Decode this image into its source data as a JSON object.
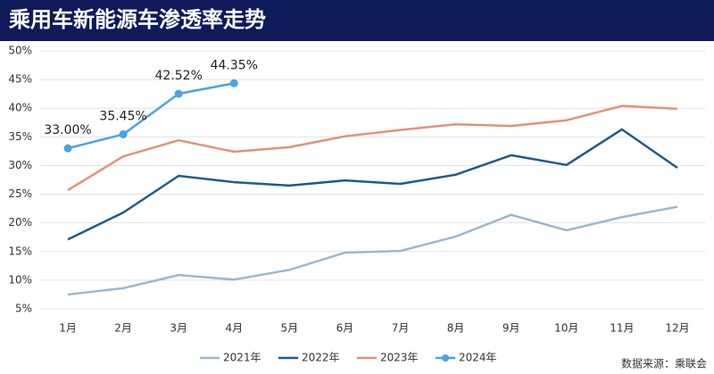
{
  "chart_data": {
    "type": "line",
    "title": "乘用车新能源车渗透率走势",
    "categories": [
      "1月",
      "2月",
      "3月",
      "4月",
      "5月",
      "6月",
      "7月",
      "8月",
      "9月",
      "10月",
      "11月",
      "12月"
    ],
    "series": [
      {
        "name": "2021年",
        "color": "#9bb7d0",
        "values": [
          7.5,
          8.6,
          10.9,
          10.1,
          11.8,
          14.8,
          15.1,
          17.6,
          21.4,
          18.7,
          21.0,
          22.8
        ]
      },
      {
        "name": "2022年",
        "color": "#1f5b8a",
        "values": [
          17.1,
          21.8,
          28.2,
          27.1,
          26.5,
          27.4,
          26.8,
          28.4,
          31.8,
          30.1,
          36.3,
          29.6
        ]
      },
      {
        "name": "2023年",
        "color": "#e0937a",
        "values": [
          25.7,
          31.6,
          34.4,
          32.4,
          33.2,
          35.1,
          36.2,
          37.2,
          36.9,
          37.9,
          40.4,
          39.9
        ]
      },
      {
        "name": "2024年",
        "color": "#4aa3e0",
        "markers": true,
        "values": [
          33.0,
          35.45,
          42.52,
          44.35,
          null,
          null,
          null,
          null,
          null,
          null,
          null,
          null
        ],
        "value_labels": [
          "33.00%",
          "35.45%",
          "42.52%",
          "44.35%",
          null,
          null,
          null,
          null,
          null,
          null,
          null,
          null
        ]
      }
    ],
    "ylim": [
      5,
      50
    ],
    "yticks": [
      {
        "value": 5,
        "label": "5%"
      },
      {
        "value": 10,
        "label": "10%"
      },
      {
        "value": 15,
        "label": "15%"
      },
      {
        "value": 20,
        "label": "20%"
      },
      {
        "value": 25,
        "label": "25%"
      },
      {
        "value": 30,
        "label": "30%"
      },
      {
        "value": 35,
        "label": "35%"
      },
      {
        "value": 40,
        "label": "40%"
      },
      {
        "value": 45,
        "label": "45%"
      },
      {
        "value": 50,
        "label": "50%"
      }
    ],
    "grid": true,
    "legend": "bottom",
    "source": "数据来源：乘联会"
  }
}
